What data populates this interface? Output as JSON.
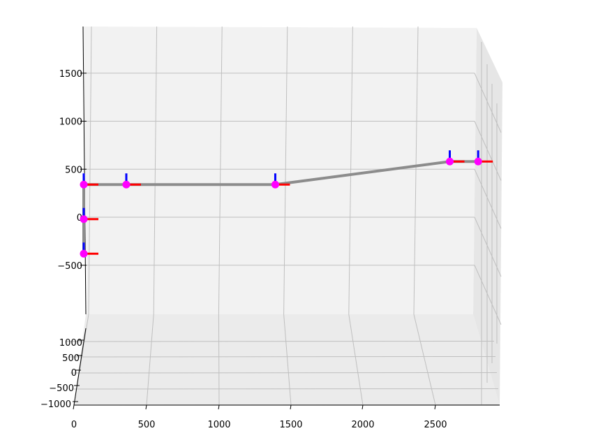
{
  "chart_data": {
    "type": "scatter",
    "projection": "3d",
    "title": "",
    "xlabel": "",
    "ylabel": "",
    "zlabel": "",
    "grid": true,
    "x_ticks": [
      "0",
      "500",
      "1000",
      "1500",
      "2000",
      "2500"
    ],
    "y_ticks": [
      "1000",
      "500",
      "0",
      "−500",
      "−1000"
    ],
    "z_ticks": [
      "1500",
      "1000",
      "500",
      "0",
      "−500"
    ],
    "xlim": [
      0,
      2950
    ],
    "ylim": [
      -1050,
      1300
    ],
    "zlim": [
      -1000,
      1950
    ],
    "points": [
      {
        "x": 0,
        "y": 0,
        "z": -380
      },
      {
        "x": 0,
        "y": 0,
        "z": -20
      },
      {
        "x": 0,
        "y": 0,
        "z": 340
      },
      {
        "x": 300,
        "y": 0,
        "z": 340
      },
      {
        "x": 1350,
        "y": 0,
        "z": 340
      },
      {
        "x": 2580,
        "y": 0,
        "z": 580
      },
      {
        "x": 2780,
        "y": 0,
        "z": 580
      }
    ],
    "colors": {
      "link": "#8c8c8c",
      "joint": "#ff00ff",
      "x_axis": "#ff0000",
      "z_axis": "#0000ff",
      "pane": "#f2f2f2",
      "grid": "#bfbfbf"
    }
  }
}
